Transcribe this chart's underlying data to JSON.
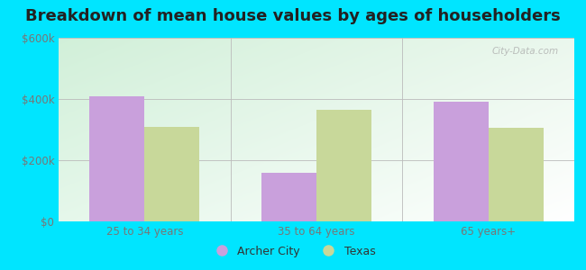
{
  "title": "Breakdown of mean house values by ages of householders",
  "categories": [
    "25 to 34 years",
    "35 to 64 years",
    "65 years+"
  ],
  "archer_city_values": [
    410000,
    160000,
    390000
  ],
  "texas_values": [
    310000,
    365000,
    305000
  ],
  "archer_city_color": "#c9a0dc",
  "texas_color": "#c8d89a",
  "ylim": [
    0,
    600000
  ],
  "yticks": [
    0,
    200000,
    400000,
    600000
  ],
  "ytick_labels": [
    "$0",
    "$200k",
    "$400k",
    "$600k"
  ],
  "background_outer": "#00e5ff",
  "title_fontsize": 13,
  "legend_labels": [
    "Archer City",
    "Texas"
  ],
  "bar_width": 0.32,
  "watermark_text": "City-Data.com"
}
